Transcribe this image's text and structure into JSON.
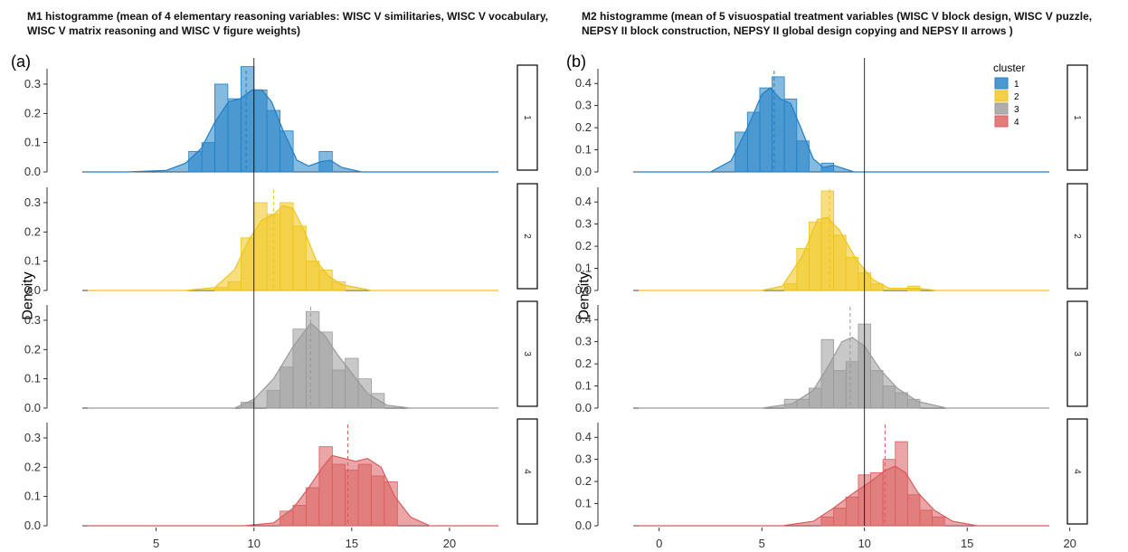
{
  "figure": {
    "legend": {
      "title": "cluster",
      "items": [
        {
          "label": "1",
          "color": "#1f7fc7"
        },
        {
          "label": "2",
          "color": "#f0c419"
        },
        {
          "label": "3",
          "color": "#9a9a9a"
        },
        {
          "label": "4",
          "color": "#d95c5c"
        }
      ]
    }
  },
  "chart_data": [
    {
      "type": "histogram",
      "panel_label": "(a)",
      "title": "M1 histogramme (mean of 4 elementary reasoning variables: WISC V similitaries, WISC V vocabulary, WISC V matrix reasoning and WISC V figure weights)",
      "xlabel": "",
      "ylabel": "Density",
      "xlim": [
        1.5,
        22.5
      ],
      "ylim": [
        0,
        0.35
      ],
      "x_ticks": [
        5,
        10,
        15,
        20
      ],
      "y_ticks": [
        "0.0",
        "0.1",
        "0.2",
        "0.3"
      ],
      "reference_line_x": 10,
      "bin_width": 0.67,
      "facets": [
        {
          "cluster": "1",
          "color": "#1f7fc7",
          "mean": 9.6,
          "bars": [
            {
              "x": 7.0,
              "density": 0.07
            },
            {
              "x": 7.67,
              "density": 0.1
            },
            {
              "x": 8.33,
              "density": 0.3
            },
            {
              "x": 9.0,
              "density": 0.25
            },
            {
              "x": 9.67,
              "density": 0.36
            },
            {
              "x": 10.33,
              "density": 0.28
            },
            {
              "x": 11.0,
              "density": 0.21
            },
            {
              "x": 11.67,
              "density": 0.14
            },
            {
              "x": 13.67,
              "density": 0.07
            }
          ],
          "density_curve": [
            [
              3.5,
              0.0
            ],
            [
              5.5,
              0.005
            ],
            [
              6.5,
              0.03
            ],
            [
              7.3,
              0.08
            ],
            [
              8.0,
              0.17
            ],
            [
              8.7,
              0.24
            ],
            [
              9.3,
              0.25
            ],
            [
              9.9,
              0.28
            ],
            [
              10.4,
              0.28
            ],
            [
              10.9,
              0.24
            ],
            [
              11.5,
              0.14
            ],
            [
              12.2,
              0.04
            ],
            [
              12.8,
              0.02
            ],
            [
              13.4,
              0.035
            ],
            [
              13.9,
              0.04
            ],
            [
              14.5,
              0.015
            ],
            [
              15.5,
              0.0
            ]
          ]
        },
        {
          "cluster": "2",
          "color": "#f0c419",
          "mean": 11.0,
          "bars": [
            {
              "x": 8.33,
              "density": 0.01
            },
            {
              "x": 9.0,
              "density": 0.03
            },
            {
              "x": 9.67,
              "density": 0.18
            },
            {
              "x": 10.33,
              "density": 0.3
            },
            {
              "x": 11.0,
              "density": 0.26
            },
            {
              "x": 11.67,
              "density": 0.3
            },
            {
              "x": 12.33,
              "density": 0.22
            },
            {
              "x": 13.0,
              "density": 0.1
            },
            {
              "x": 13.67,
              "density": 0.07
            },
            {
              "x": 14.33,
              "density": 0.03
            }
          ],
          "density_curve": [
            [
              6.5,
              0.0
            ],
            [
              8.0,
              0.01
            ],
            [
              9.0,
              0.07
            ],
            [
              9.8,
              0.18
            ],
            [
              10.4,
              0.24
            ],
            [
              11.0,
              0.26
            ],
            [
              11.5,
              0.29
            ],
            [
              12.0,
              0.28
            ],
            [
              12.6,
              0.2
            ],
            [
              13.2,
              0.1
            ],
            [
              13.8,
              0.05
            ],
            [
              14.5,
              0.02
            ],
            [
              16.0,
              0.0
            ]
          ]
        },
        {
          "cluster": "3",
          "color": "#9a9a9a",
          "mean": 12.9,
          "bars": [
            {
              "x": 9.67,
              "density": 0.02
            },
            {
              "x": 11.0,
              "density": 0.06
            },
            {
              "x": 11.67,
              "density": 0.14
            },
            {
              "x": 12.33,
              "density": 0.27
            },
            {
              "x": 13.0,
              "density": 0.33
            },
            {
              "x": 13.67,
              "density": 0.26
            },
            {
              "x": 14.33,
              "density": 0.13
            },
            {
              "x": 15.0,
              "density": 0.17
            },
            {
              "x": 15.67,
              "density": 0.1
            },
            {
              "x": 16.33,
              "density": 0.05
            }
          ],
          "density_curve": [
            [
              9.0,
              0.0
            ],
            [
              10.0,
              0.03
            ],
            [
              11.0,
              0.1
            ],
            [
              12.0,
              0.21
            ],
            [
              12.9,
              0.29
            ],
            [
              13.6,
              0.25
            ],
            [
              14.3,
              0.18
            ],
            [
              15.0,
              0.12
            ],
            [
              15.8,
              0.05
            ],
            [
              16.8,
              0.01
            ],
            [
              18.0,
              0.0
            ]
          ]
        },
        {
          "cluster": "4",
          "color": "#d95c5c",
          "mean": 14.8,
          "bars": [
            {
              "x": 11.67,
              "density": 0.05
            },
            {
              "x": 12.33,
              "density": 0.07
            },
            {
              "x": 13.0,
              "density": 0.13
            },
            {
              "x": 13.67,
              "density": 0.27
            },
            {
              "x": 14.33,
              "density": 0.21
            },
            {
              "x": 15.0,
              "density": 0.19
            },
            {
              "x": 15.67,
              "density": 0.21
            },
            {
              "x": 16.33,
              "density": 0.17
            },
            {
              "x": 17.0,
              "density": 0.15
            }
          ],
          "density_curve": [
            [
              9.5,
              0.0
            ],
            [
              11.0,
              0.01
            ],
            [
              12.0,
              0.06
            ],
            [
              12.8,
              0.13
            ],
            [
              13.5,
              0.2
            ],
            [
              14.0,
              0.24
            ],
            [
              14.6,
              0.23
            ],
            [
              15.2,
              0.22
            ],
            [
              15.8,
              0.23
            ],
            [
              16.5,
              0.2
            ],
            [
              17.2,
              0.1
            ],
            [
              18.0,
              0.03
            ],
            [
              19.0,
              0.0
            ]
          ]
        }
      ]
    },
    {
      "type": "histogram",
      "panel_label": "(b)",
      "title": "M2 histogramme (mean of 5 visuospatial treatment variables (WISC V block design, WISC V puzzle, NEPSY II block construction, NEPSY II global design copying and NEPSY II arrows )",
      "xlabel": "",
      "ylabel": "Density",
      "xlim": [
        -1,
        19
      ],
      "ylim": [
        0,
        0.45
      ],
      "x_ticks": [
        0,
        5,
        10,
        15,
        20
      ],
      "y_ticks": [
        "0.0",
        "0.1",
        "0.2",
        "0.3",
        "0.4"
      ],
      "reference_line_x": 10,
      "bin_width": 0.6,
      "facets": [
        {
          "cluster": "1",
          "color": "#1f7fc7",
          "mean": 5.6,
          "bars": [
            {
              "x": 4.0,
              "density": 0.18
            },
            {
              "x": 4.6,
              "density": 0.27
            },
            {
              "x": 5.2,
              "density": 0.38
            },
            {
              "x": 5.8,
              "density": 0.43
            },
            {
              "x": 6.4,
              "density": 0.33
            },
            {
              "x": 7.0,
              "density": 0.14
            },
            {
              "x": 8.2,
              "density": 0.04
            }
          ],
          "density_curve": [
            [
              2.5,
              0.0
            ],
            [
              3.5,
              0.05
            ],
            [
              4.3,
              0.2
            ],
            [
              5.0,
              0.35
            ],
            [
              5.4,
              0.38
            ],
            [
              5.9,
              0.33
            ],
            [
              6.4,
              0.31
            ],
            [
              6.9,
              0.2
            ],
            [
              7.5,
              0.06
            ],
            [
              8.0,
              0.02
            ],
            [
              8.5,
              0.03
            ],
            [
              9.5,
              0.0
            ]
          ]
        },
        {
          "cluster": "2",
          "color": "#f0c419",
          "mean": 8.3,
          "bars": [
            {
              "x": 6.4,
              "density": 0.03
            },
            {
              "x": 7.0,
              "density": 0.19
            },
            {
              "x": 7.6,
              "density": 0.31
            },
            {
              "x": 8.2,
              "density": 0.45
            },
            {
              "x": 8.8,
              "density": 0.25
            },
            {
              "x": 9.4,
              "density": 0.15
            },
            {
              "x": 10.0,
              "density": 0.08
            },
            {
              "x": 10.6,
              "density": 0.03
            },
            {
              "x": 12.4,
              "density": 0.02
            }
          ],
          "density_curve": [
            [
              5.0,
              0.0
            ],
            [
              6.0,
              0.02
            ],
            [
              7.0,
              0.16
            ],
            [
              7.7,
              0.32
            ],
            [
              8.2,
              0.33
            ],
            [
              8.8,
              0.27
            ],
            [
              9.6,
              0.14
            ],
            [
              10.4,
              0.05
            ],
            [
              11.2,
              0.01
            ],
            [
              12.2,
              0.01
            ],
            [
              12.6,
              0.01
            ],
            [
              13.5,
              0.0
            ]
          ]
        },
        {
          "cluster": "3",
          "color": "#9a9a9a",
          "mean": 9.3,
          "bars": [
            {
              "x": 6.4,
              "density": 0.04
            },
            {
              "x": 7.0,
              "density": 0.04
            },
            {
              "x": 7.6,
              "density": 0.09
            },
            {
              "x": 8.2,
              "density": 0.31
            },
            {
              "x": 8.8,
              "density": 0.17
            },
            {
              "x": 9.4,
              "density": 0.21
            },
            {
              "x": 10.0,
              "density": 0.38
            },
            {
              "x": 10.6,
              "density": 0.17
            },
            {
              "x": 11.2,
              "density": 0.1
            },
            {
              "x": 11.8,
              "density": 0.07
            },
            {
              "x": 12.4,
              "density": 0.04
            }
          ],
          "density_curve": [
            [
              5.0,
              0.0
            ],
            [
              6.5,
              0.02
            ],
            [
              7.5,
              0.08
            ],
            [
              8.3,
              0.2
            ],
            [
              8.9,
              0.3
            ],
            [
              9.4,
              0.32
            ],
            [
              10.0,
              0.28
            ],
            [
              10.8,
              0.17
            ],
            [
              11.6,
              0.09
            ],
            [
              12.6,
              0.03
            ],
            [
              14.0,
              0.0
            ]
          ]
        },
        {
          "cluster": "4",
          "color": "#d95c5c",
          "mean": 11.0,
          "bars": [
            {
              "x": 8.2,
              "density": 0.04
            },
            {
              "x": 8.8,
              "density": 0.08
            },
            {
              "x": 9.4,
              "density": 0.13
            },
            {
              "x": 10.0,
              "density": 0.23
            },
            {
              "x": 10.6,
              "density": 0.24
            },
            {
              "x": 11.2,
              "density": 0.3
            },
            {
              "x": 11.8,
              "density": 0.38
            },
            {
              "x": 12.4,
              "density": 0.14
            },
            {
              "x": 13.0,
              "density": 0.07
            },
            {
              "x": 13.6,
              "density": 0.04
            }
          ],
          "density_curve": [
            [
              6.0,
              0.0
            ],
            [
              7.5,
              0.02
            ],
            [
              8.5,
              0.08
            ],
            [
              9.5,
              0.15
            ],
            [
              10.3,
              0.2
            ],
            [
              11.0,
              0.25
            ],
            [
              11.5,
              0.27
            ],
            [
              12.0,
              0.24
            ],
            [
              12.6,
              0.15
            ],
            [
              13.4,
              0.07
            ],
            [
              14.3,
              0.02
            ],
            [
              15.5,
              0.0
            ]
          ]
        }
      ]
    }
  ]
}
